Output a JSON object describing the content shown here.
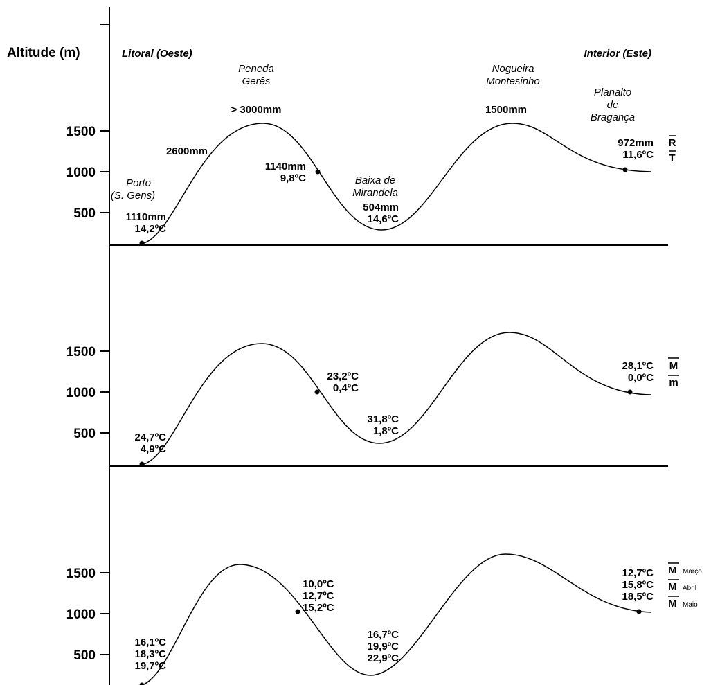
{
  "header": {
    "axis_title": "Altitude (m)",
    "left_region": "Litoral (Oeste)",
    "right_region": "Interior (Este)"
  },
  "tick_labels": [
    "1500",
    "1000",
    "500"
  ],
  "panel1": {
    "peneda": [
      "Peneda",
      "Gerês"
    ],
    "peneda_rain": "> 3000mm",
    "nogueira": [
      "Nogueira",
      "Montesinho"
    ],
    "nogueira_rain": "1500mm",
    "slope_rain": "2600mm",
    "planalto": [
      "Planalto",
      "de",
      "Bragança"
    ],
    "porto": [
      "Porto",
      "(S. Gens)"
    ],
    "porto_values": [
      "1110mm",
      "14,2ºC"
    ],
    "geres_values": [
      "1140mm",
      "9,8ºC"
    ],
    "baixa": [
      "Baixa de",
      "Mirandela"
    ],
    "baixa_values": [
      "504mm",
      "14,6ºC"
    ],
    "braganca_values": [
      "972mm",
      "11,6ºC"
    ],
    "legend": [
      "R",
      "T"
    ]
  },
  "panel2": {
    "porto_values": [
      "24,7ºC",
      "4,9ºC"
    ],
    "geres_values": [
      "23,2ºC",
      "0,4ºC"
    ],
    "baixa_values": [
      "31,8ºC",
      "1,8ºC"
    ],
    "braganca_values": [
      "28,1ºC",
      "0,0ºC"
    ],
    "legend": [
      "M",
      "m"
    ]
  },
  "panel3": {
    "porto_values": [
      "16,1ºC",
      "18,3ºC",
      "19,7ºC"
    ],
    "geres_values": [
      "10,0ºC",
      "12,7ºC",
      "15,2ºC"
    ],
    "baixa_values": [
      "16,7ºC",
      "19,9ºC",
      "22,9ºC"
    ],
    "braganca_values": [
      "12,7ºC",
      "15,8ºC",
      "18,5ºC"
    ],
    "legend": [
      {
        "symbol": "M",
        "month": "Março"
      },
      {
        "symbol": "M",
        "month": "Abril"
      },
      {
        "symbol": "M",
        "month": "Maio"
      }
    ]
  },
  "colors": {
    "ink": "#000000",
    "background": "#ffffff"
  }
}
